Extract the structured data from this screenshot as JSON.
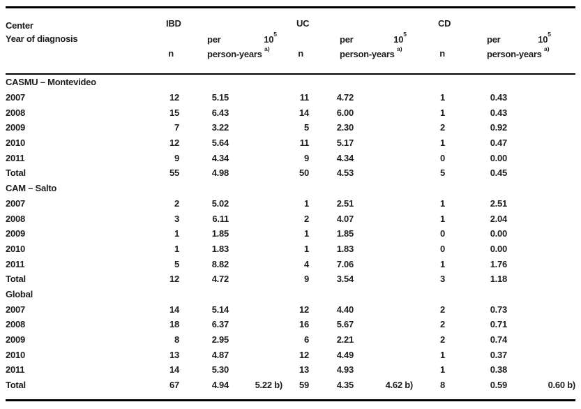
{
  "table": {
    "text_color": "#1d1d1b",
    "rule_color": "#000000",
    "header": {
      "center_label": "Center",
      "year_label": "Year of diagnosis",
      "groups": [
        {
          "label": "IBD",
          "n_label": "n",
          "per_label": "per",
          "rate_base": "10",
          "rate_exponent": "5",
          "person_years_label": "person-years",
          "footnote_marker": "a)"
        },
        {
          "label": "UC",
          "n_label": "n",
          "per_label": "per",
          "rate_base": "10",
          "rate_exponent": "5",
          "person_years_label": "person-years",
          "footnote_marker": "a)"
        },
        {
          "label": "CD",
          "n_label": "n",
          "per_label": "per",
          "rate_base": "10",
          "rate_exponent": "5",
          "person_years_label": "person-years",
          "footnote_marker": "a)"
        }
      ]
    },
    "sections": [
      {
        "name": "CASMU – Montevideo",
        "rows": [
          {
            "year": "2007",
            "cells": [
              "12",
              "5.15",
              "",
              "11",
              "4.72",
              "",
              "1",
              "0.43",
              ""
            ]
          },
          {
            "year": "2008",
            "cells": [
              "15",
              "6.43",
              "",
              "14",
              "6.00",
              "",
              "1",
              "0.43",
              ""
            ]
          },
          {
            "year": "2009",
            "cells": [
              "7",
              "3.22",
              "",
              "5",
              "2.30",
              "",
              "2",
              "0.92",
              ""
            ]
          },
          {
            "year": "2010",
            "cells": [
              "12",
              "5.64",
              "",
              "11",
              "5.17",
              "",
              "1",
              "0.47",
              ""
            ]
          },
          {
            "year": "2011",
            "cells": [
              "9",
              "4.34",
              "",
              "9",
              "4.34",
              "",
              "0",
              "0.00",
              ""
            ]
          },
          {
            "year": "Total",
            "cells": [
              "55",
              "4.98",
              "",
              "50",
              "4.53",
              "",
              "5",
              "0.45",
              ""
            ]
          }
        ]
      },
      {
        "name": "CAM – Salto",
        "rows": [
          {
            "year": "2007",
            "cells": [
              "2",
              "5.02",
              "",
              "1",
              "2.51",
              "",
              "1",
              "2.51",
              ""
            ]
          },
          {
            "year": "2008",
            "cells": [
              "3",
              "6.11",
              "",
              "2",
              "4.07",
              "",
              "1",
              "2.04",
              ""
            ]
          },
          {
            "year": "2009",
            "cells": [
              "1",
              "1.85",
              "",
              "1",
              "1.85",
              "",
              "0",
              "0.00",
              ""
            ]
          },
          {
            "year": "2010",
            "cells": [
              "1",
              "1.83",
              "",
              "1",
              "1.83",
              "",
              "0",
              "0.00",
              ""
            ]
          },
          {
            "year": "2011",
            "cells": [
              "5",
              "8.82",
              "",
              "4",
              "7.06",
              "",
              "1",
              "1.76",
              ""
            ]
          },
          {
            "year": "Total",
            "cells": [
              "12",
              "4.72",
              "",
              "9",
              "3.54",
              "",
              "3",
              "1.18",
              ""
            ]
          }
        ]
      },
      {
        "name": "Global",
        "rows": [
          {
            "year": "2007",
            "cells": [
              "14",
              "5.14",
              "",
              "12",
              "4.40",
              "",
              "2",
              "0.73",
              ""
            ]
          },
          {
            "year": "2008",
            "cells": [
              "18",
              "6.37",
              "",
              "16",
              "5.67",
              "",
              "2",
              "0.71",
              ""
            ]
          },
          {
            "year": "2009",
            "cells": [
              "8",
              "2.95",
              "",
              "6",
              "2.21",
              "",
              "2",
              "0.74",
              ""
            ]
          },
          {
            "year": "2010",
            "cells": [
              "13",
              "4.87",
              "",
              "12",
              "4.49",
              "",
              "1",
              "0.37",
              ""
            ]
          },
          {
            "year": "2011",
            "cells": [
              "14",
              "5.30",
              "",
              "13",
              "4.93",
              "",
              "1",
              "0.38",
              ""
            ]
          },
          {
            "year": "Total",
            "cells": [
              "67",
              "4.94",
              "5.22 b)",
              "59",
              "4.35",
              "4.62 b)",
              "8",
              "0.59",
              "0.60 b)"
            ]
          }
        ]
      }
    ]
  }
}
